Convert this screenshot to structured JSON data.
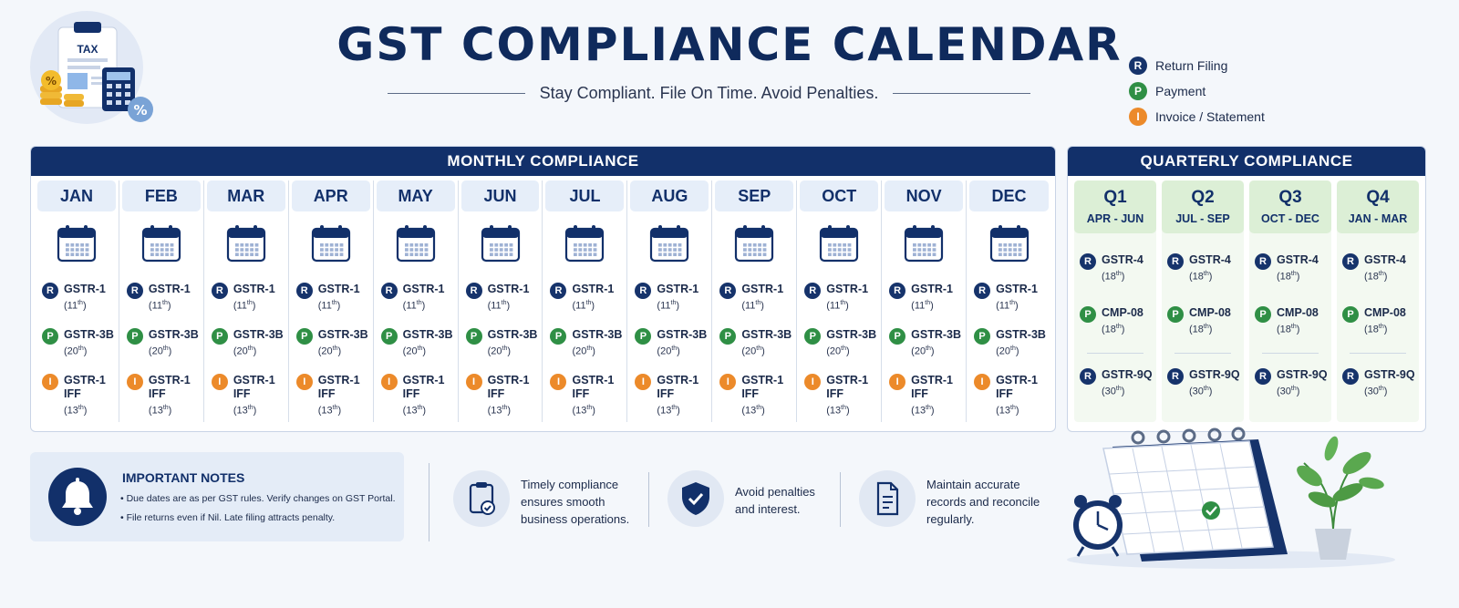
{
  "header": {
    "title": "GST COMPLIANCE CALENDAR",
    "subtitle": "Stay Compliant. File On Time. Avoid Penalties.",
    "illustration_label": "TAX"
  },
  "legend": [
    {
      "letter": "R",
      "label": "Return Filing",
      "color": "#16336b"
    },
    {
      "letter": "P",
      "label": "Payment",
      "color": "#2f8f45"
    },
    {
      "letter": "I",
      "label": "Invoice / Statement",
      "color": "#ec8a2a"
    }
  ],
  "monthly": {
    "heading": "MONTHLY COMPLIANCE",
    "months": [
      "JAN",
      "FEB",
      "MAR",
      "APR",
      "MAY",
      "JUN",
      "JUL",
      "AUG",
      "SEP",
      "OCT",
      "NOV",
      "DEC"
    ],
    "entries": [
      {
        "letter": "R",
        "form": "GSTR-1",
        "day": "11",
        "suffix": "th"
      },
      {
        "letter": "P",
        "form": "GSTR-3B",
        "day": "20",
        "suffix": "th"
      },
      {
        "letter": "I",
        "form": "GSTR-1",
        "form2": "IFF",
        "day": "13",
        "suffix": "th"
      }
    ]
  },
  "quarterly": {
    "heading": "QUARTERLY COMPLIANCE",
    "quarters": [
      {
        "name": "Q1",
        "range": "APR - JUN"
      },
      {
        "name": "Q2",
        "range": "JUL - SEP"
      },
      {
        "name": "Q3",
        "range": "OCT - DEC"
      },
      {
        "name": "Q4",
        "range": "JAN - MAR"
      }
    ],
    "entries": [
      {
        "letter": "R",
        "form": "GSTR-4",
        "day": "18",
        "suffix": "th"
      },
      {
        "letter": "P",
        "form": "CMP-08",
        "day": "18",
        "suffix": "th"
      },
      {
        "letter": "R",
        "form": "GSTR-9Q",
        "day": "30",
        "suffix": "th"
      }
    ]
  },
  "notes": {
    "title": "IMPORTANT NOTES",
    "items": [
      "• Due dates are as per GST rules. Verify changes on GST Portal.",
      "• File returns even if Nil. Late filing attracts penalty."
    ]
  },
  "tips": [
    {
      "icon": "clipboard-check-icon",
      "text": "Timely compliance ensures smooth business operations."
    },
    {
      "icon": "shield-check-icon",
      "text": "Avoid penalties and interest."
    },
    {
      "icon": "document-icon",
      "text": "Maintain accurate records and reconcile regularly."
    }
  ],
  "colors": {
    "navy": "#12306a",
    "green": "#2f8f45",
    "orange": "#ec8a2a",
    "background": "#f4f7fb"
  }
}
